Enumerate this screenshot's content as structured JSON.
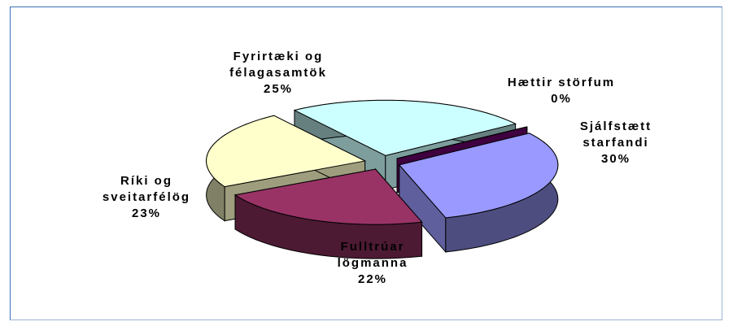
{
  "chart_data": {
    "type": "pie3d",
    "categories": [
      "Hættir störfum",
      "Sjálfstætt starfandi",
      "Fulltrúar lögmanna",
      "Ríki og sveitarfélög",
      "Fyrirtæki og félagasamtök"
    ],
    "values": [
      0,
      30,
      22,
      23,
      25
    ],
    "value_labels": [
      "0%",
      "30%",
      "22%",
      "23%",
      "25%"
    ],
    "colors": [
      "#660066",
      "#9999ff",
      "#993366",
      "#ffffcc",
      "#ccffff"
    ]
  }
}
